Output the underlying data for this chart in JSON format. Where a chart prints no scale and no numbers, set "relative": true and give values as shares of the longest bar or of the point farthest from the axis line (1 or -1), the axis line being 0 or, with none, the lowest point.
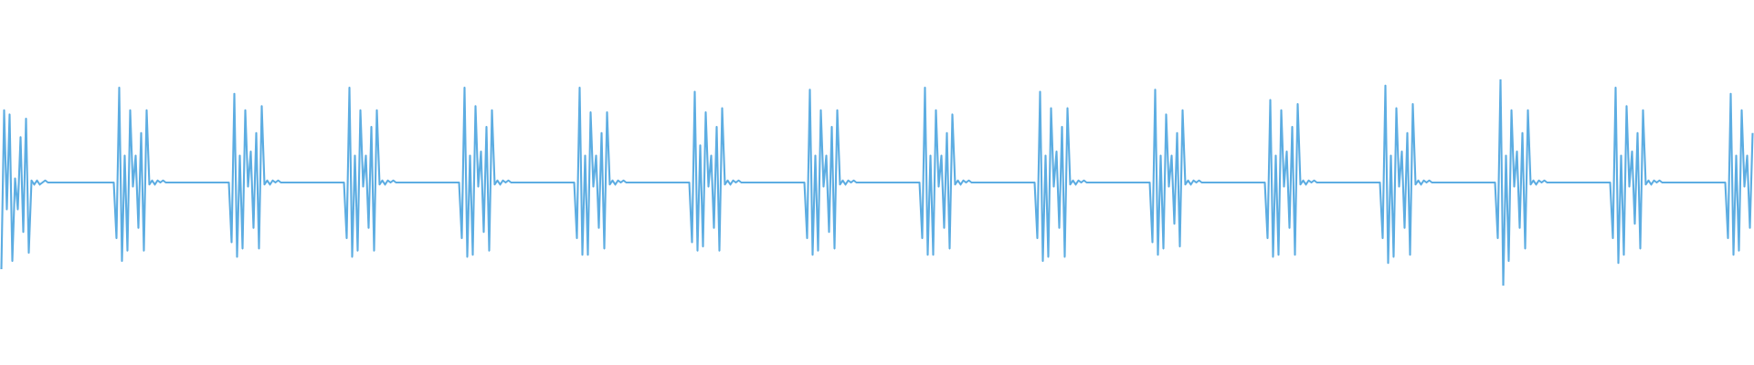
{
  "chart_data": {
    "type": "line",
    "relative": true,
    "color": "#5dade2",
    "categories": [
      null,
      null,
      null,
      null,
      null,
      null,
      null,
      null,
      null,
      null,
      null,
      null,
      null,
      null,
      null,
      null,
      null,
      null,
      null,
      null,
      null,
      null,
      null,
      null,
      null,
      null,
      null,
      null,
      null,
      null,
      null,
      null,
      null,
      null,
      null,
      null,
      null,
      null,
      null,
      null,
      null,
      null,
      null,
      null,
      null,
      null,
      null,
      null,
      null,
      null,
      null,
      null,
      null,
      null,
      null,
      null,
      null,
      null,
      null,
      null,
      null,
      null,
      null,
      null,
      null,
      null,
      null,
      null,
      null,
      null,
      null,
      null,
      null,
      null,
      null,
      null,
      null,
      null,
      null,
      null,
      null,
      null,
      null,
      null,
      null,
      null,
      null,
      null,
      null,
      null,
      null,
      null,
      null,
      null,
      null,
      null,
      null,
      null,
      null,
      null,
      null,
      null,
      null,
      null,
      null,
      null,
      null,
      null,
      null,
      null,
      null,
      null,
      null,
      null,
      null,
      null,
      null,
      null,
      null,
      null,
      null,
      null,
      null,
      null,
      null,
      null,
      null,
      null,
      null,
      null,
      null,
      null,
      null,
      null,
      null,
      null,
      null,
      null,
      null,
      null,
      null,
      null,
      null,
      null,
      null,
      null,
      null,
      null,
      null,
      null,
      null,
      null,
      null,
      null,
      null,
      null,
      null,
      null,
      null,
      null,
      null,
      null,
      null,
      null,
      null,
      null,
      null,
      null,
      null,
      null,
      null,
      null,
      null,
      null,
      null,
      null,
      null,
      null,
      null,
      null,
      null,
      null,
      null,
      null,
      null,
      null,
      null,
      null,
      null,
      null,
      null,
      null,
      null,
      null,
      null,
      null,
      null,
      null,
      null,
      null,
      null,
      null,
      null,
      null,
      null,
      null,
      null,
      null,
      null,
      null,
      null,
      null,
      null,
      null,
      null,
      null,
      null,
      null,
      null,
      null,
      null,
      null,
      null,
      null,
      null,
      null,
      null,
      null,
      null,
      null,
      null,
      null,
      null,
      null,
      null,
      null,
      null,
      null,
      null,
      null,
      null,
      null,
      null,
      null,
      null,
      null,
      null,
      null,
      null,
      null,
      null,
      null,
      null,
      null,
      null,
      null,
      null,
      null,
      null,
      null,
      null,
      null,
      null,
      null,
      null,
      null,
      null,
      null,
      null,
      null,
      null,
      null,
      null,
      null,
      null,
      null,
      null,
      null,
      null,
      null,
      null,
      null,
      null,
      null,
      null,
      null,
      null,
      null,
      null,
      null,
      null,
      null,
      null,
      null,
      null,
      null,
      null,
      null,
      null,
      null,
      null,
      null,
      null,
      null,
      null,
      null,
      null,
      null,
      null,
      null,
      null,
      null,
      null,
      null,
      null,
      null,
      null,
      null,
      null,
      null,
      null,
      null,
      null,
      null,
      null,
      null,
      null,
      null,
      null,
      null,
      null,
      null,
      null,
      null,
      null,
      null,
      null,
      null,
      null,
      null,
      null,
      null,
      null,
      null,
      null,
      null,
      null,
      null,
      null,
      null,
      null,
      null,
      null,
      null,
      null,
      null,
      null,
      null,
      null,
      null,
      null,
      null,
      null,
      null,
      null,
      null,
      null,
      null,
      null,
      null,
      null,
      null,
      null,
      null,
      null,
      null,
      null,
      null,
      null,
      null,
      null,
      null,
      null,
      null,
      null,
      null,
      null,
      null,
      null,
      null,
      null,
      null,
      null,
      null,
      null,
      null,
      null,
      null,
      null,
      null,
      null,
      null,
      null,
      null,
      null,
      null,
      null,
      null,
      null,
      null,
      null,
      null,
      null,
      null,
      null,
      null,
      null,
      null,
      null,
      null,
      null,
      null,
      null,
      null,
      null,
      null,
      null,
      null,
      null,
      null,
      null,
      null,
      null,
      null,
      null,
      null,
      null,
      null,
      null,
      null,
      null,
      null,
      null,
      null,
      null,
      null,
      null,
      null,
      null,
      null,
      null,
      null,
      null,
      null,
      null,
      null,
      null,
      null,
      null,
      null,
      null,
      null,
      null,
      null,
      null,
      null,
      null,
      null,
      null,
      null,
      null,
      null,
      null,
      null,
      null,
      null,
      null,
      null,
      null,
      null,
      null,
      null,
      null,
      null,
      null,
      null,
      null,
      null,
      null,
      null,
      null,
      null,
      null,
      null,
      null,
      null,
      null,
      null,
      null,
      null,
      null,
      null,
      null,
      null,
      null,
      null,
      null,
      null,
      null,
      null,
      null,
      null,
      null,
      null,
      null,
      null,
      null,
      null,
      null,
      null,
      null,
      null,
      null,
      null,
      null,
      null,
      null,
      null,
      null,
      null,
      null,
      null,
      null,
      null,
      null,
      null,
      null,
      null,
      null,
      null,
      null,
      null,
      null,
      null,
      null,
      null,
      null,
      null,
      null,
      null,
      null,
      null,
      null,
      null,
      null,
      null,
      null,
      null,
      null,
      null,
      null,
      null,
      null,
      null,
      null,
      null,
      null,
      null,
      null,
      null,
      null,
      null,
      null,
      null,
      null,
      null,
      null,
      null,
      null,
      null,
      null,
      null,
      null,
      null,
      null,
      null,
      null,
      null,
      null,
      null,
      null,
      null,
      null,
      null,
      null,
      null,
      null,
      null,
      null,
      null,
      null,
      null,
      null,
      null,
      null,
      null,
      null,
      null,
      null,
      null,
      null,
      null,
      null,
      null,
      null,
      null,
      null,
      null,
      null,
      null,
      null,
      null,
      null,
      null,
      null,
      null,
      null,
      null,
      null,
      null,
      null,
      null,
      null,
      null,
      null,
      null,
      null,
      null,
      null,
      null
    ],
    "values": [
      0.08,
      0.85,
      0.37,
      0.83,
      0.12,
      0.52,
      0.37,
      0.72,
      0.26,
      0.81,
      0.16,
      0.51,
      0.49,
      0.51,
      0.49,
      0.5,
      0.51,
      0.5,
      0.5,
      0.5,
      0.5,
      0.5,
      0.5,
      0.5,
      0.5,
      0.5,
      0.5,
      0.5,
      0.5,
      0.5,
      0.5,
      0.5,
      0.5,
      0.5,
      0.5,
      0.5,
      0.5,
      0.5,
      0.5,
      0.5,
      0.5,
      0.5,
      0.23,
      0.96,
      0.12,
      0.63,
      0.17,
      0.85,
      0.48,
      0.63,
      0.28,
      0.74,
      0.17,
      0.85,
      0.49,
      0.51,
      0.49,
      0.51,
      0.5,
      0.51,
      0.5,
      0.5,
      0.5,
      0.5,
      0.5,
      0.5,
      0.5,
      0.5,
      0.5,
      0.5,
      0.5,
      0.5,
      0.5,
      0.5,
      0.5,
      0.5,
      0.5,
      0.5,
      0.5,
      0.5,
      0.5,
      0.5,
      0.5,
      0.5,
      0.21,
      0.93,
      0.14,
      0.63,
      0.18,
      0.85,
      0.48,
      0.65,
      0.28,
      0.74,
      0.18,
      0.87,
      0.49,
      0.51,
      0.49,
      0.51,
      0.5,
      0.51,
      0.5,
      0.5,
      0.5,
      0.5,
      0.5,
      0.5,
      0.5,
      0.5,
      0.5,
      0.5,
      0.5,
      0.5,
      0.5,
      0.5,
      0.5,
      0.5,
      0.5,
      0.5,
      0.5,
      0.5,
      0.5,
      0.5,
      0.5,
      0.5,
      0.23,
      0.96,
      0.14,
      0.63,
      0.17,
      0.85,
      0.48,
      0.63,
      0.28,
      0.77,
      0.17,
      0.85,
      0.49,
      0.51,
      0.49,
      0.51,
      0.5,
      0.51,
      0.5,
      0.5,
      0.5,
      0.5,
      0.5,
      0.5,
      0.5,
      0.5,
      0.5,
      0.5,
      0.5,
      0.5,
      0.5,
      0.5,
      0.5,
      0.5,
      0.5,
      0.5,
      0.5,
      0.5,
      0.5,
      0.5,
      0.5,
      0.5,
      0.23,
      0.96,
      0.14,
      0.63,
      0.15,
      0.87,
      0.48,
      0.65,
      0.26,
      0.77,
      0.17,
      0.85,
      0.49,
      0.51,
      0.49,
      0.51,
      0.5,
      0.51,
      0.5,
      0.5,
      0.5,
      0.5,
      0.5,
      0.5,
      0.5,
      0.5,
      0.5,
      0.5,
      0.5,
      0.5,
      0.5,
      0.5,
      0.5,
      0.5,
      0.5,
      0.5,
      0.5,
      0.5,
      0.5,
      0.5,
      0.5,
      0.5,
      0.23,
      0.96,
      0.15,
      0.63,
      0.15,
      0.84,
      0.48,
      0.63,
      0.28,
      0.74,
      0.18,
      0.84,
      0.49,
      0.51,
      0.49,
      0.51,
      0.5,
      0.51,
      0.5,
      0.5,
      0.5,
      0.5,
      0.5,
      0.5,
      0.5,
      0.5,
      0.5,
      0.5,
      0.5,
      0.5,
      0.5,
      0.5,
      0.5,
      0.5,
      0.5,
      0.5,
      0.5,
      0.5,
      0.5,
      0.5,
      0.5,
      0.5,
      0.21,
      0.94,
      0.17,
      0.68,
      0.19,
      0.84,
      0.48,
      0.63,
      0.28,
      0.77,
      0.17,
      0.86,
      0.49,
      0.51,
      0.49,
      0.51,
      0.5,
      0.51,
      0.5,
      0.5,
      0.5,
      0.5,
      0.5,
      0.5,
      0.5,
      0.5,
      0.5,
      0.5,
      0.5,
      0.5,
      0.5,
      0.5,
      0.5,
      0.5,
      0.5,
      0.5,
      0.5,
      0.5,
      0.5,
      0.5,
      0.5,
      0.5,
      0.23,
      0.95,
      0.15,
      0.63,
      0.17,
      0.85,
      0.48,
      0.63,
      0.26,
      0.77,
      0.18,
      0.85,
      0.49,
      0.51,
      0.49,
      0.51,
      0.5,
      0.51,
      0.5,
      0.5,
      0.5,
      0.5,
      0.5,
      0.5,
      0.5,
      0.5,
      0.5,
      0.5,
      0.5,
      0.5,
      0.5,
      0.5,
      0.5,
      0.5,
      0.5,
      0.5,
      0.5,
      0.5,
      0.5,
      0.5,
      0.5,
      0.5,
      0.23,
      0.96,
      0.15,
      0.63,
      0.15,
      0.85,
      0.48,
      0.63,
      0.28,
      0.74,
      0.18,
      0.83,
      0.49,
      0.51,
      0.49,
      0.51,
      0.5,
      0.51,
      0.5,
      0.5,
      0.5,
      0.5,
      0.5,
      0.5,
      0.5,
      0.5,
      0.5,
      0.5,
      0.5,
      0.5,
      0.5,
      0.5,
      0.5,
      0.5,
      0.5,
      0.5,
      0.5,
      0.5,
      0.5,
      0.5,
      0.5,
      0.5,
      0.23,
      0.94,
      0.12,
      0.63,
      0.14,
      0.86,
      0.48,
      0.65,
      0.28,
      0.77,
      0.14,
      0.86,
      0.49,
      0.51,
      0.49,
      0.51,
      0.5,
      0.51,
      0.5,
      0.5,
      0.5,
      0.5,
      0.5,
      0.5,
      0.5,
      0.5,
      0.5,
      0.5,
      0.5,
      0.5,
      0.5,
      0.5,
      0.5,
      0.5,
      0.5,
      0.5,
      0.5,
      0.5,
      0.5,
      0.5,
      0.5,
      0.5,
      0.21,
      0.95,
      0.15,
      0.63,
      0.18,
      0.83,
      0.48,
      0.63,
      0.3,
      0.74,
      0.19,
      0.85,
      0.49,
      0.51,
      0.49,
      0.51,
      0.5,
      0.51,
      0.5,
      0.5,
      0.5,
      0.5,
      0.5,
      0.5,
      0.5,
      0.5,
      0.5,
      0.5,
      0.5,
      0.5,
      0.5,
      0.5,
      0.5,
      0.5,
      0.5,
      0.5,
      0.5,
      0.5,
      0.5,
      0.5,
      0.5,
      0.5,
      0.23,
      0.9,
      0.14,
      0.63,
      0.15,
      0.85,
      0.48,
      0.65,
      0.28,
      0.77,
      0.15,
      0.88,
      0.49,
      0.51,
      0.49,
      0.51,
      0.5,
      0.51,
      0.5,
      0.5,
      0.5,
      0.5,
      0.5,
      0.5,
      0.5,
      0.5,
      0.5,
      0.5,
      0.5,
      0.5,
      0.5,
      0.5,
      0.5,
      0.5,
      0.5,
      0.5,
      0.5,
      0.5,
      0.5,
      0.5,
      0.5,
      0.5,
      0.23,
      0.97,
      0.11,
      0.63,
      0.14,
      0.86,
      0.48,
      0.65,
      0.28,
      0.74,
      0.15,
      0.88,
      0.49,
      0.51,
      0.49,
      0.51,
      0.5,
      0.51,
      0.5,
      0.5,
      0.5,
      0.5,
      0.5,
      0.5,
      0.5,
      0.5,
      0.5,
      0.5,
      0.5,
      0.5,
      0.5,
      0.5,
      0.5,
      0.5,
      0.5,
      0.5,
      0.5,
      0.5,
      0.5,
      0.5,
      0.5,
      0.5,
      0.23,
      1,
      0,
      0.63,
      0.12,
      0.85,
      0.48,
      0.65,
      0.28,
      0.74,
      0.18,
      0.85,
      0.49,
      0.51,
      0.49,
      0.51,
      0.5,
      0.51,
      0.5,
      0.5,
      0.5,
      0.5,
      0.5,
      0.5,
      0.5,
      0.5,
      0.5,
      0.5,
      0.5,
      0.5,
      0.5,
      0.5,
      0.5,
      0.5,
      0.5,
      0.5,
      0.5,
      0.5,
      0.5,
      0.5,
      0.5,
      0.5,
      0.23,
      0.96,
      0.11,
      0.63,
      0.15,
      0.87,
      0.48,
      0.65,
      0.3,
      0.74,
      0.18,
      0.85,
      0.49,
      0.51,
      0.49,
      0.51,
      0.5,
      0.51,
      0.5,
      0.5,
      0.5,
      0.5,
      0.5,
      0.5,
      0.5,
      0.5,
      0.5,
      0.5,
      0.5,
      0.5,
      0.5,
      0.5,
      0.5,
      0.5,
      0.5,
      0.5,
      0.5,
      0.5,
      0.5,
      0.5,
      0.5,
      0.5,
      0.23,
      0.93,
      0.15,
      0.63,
      0.17,
      0.85,
      0.48,
      0.63,
      0.28,
      0.74
    ]
  }
}
